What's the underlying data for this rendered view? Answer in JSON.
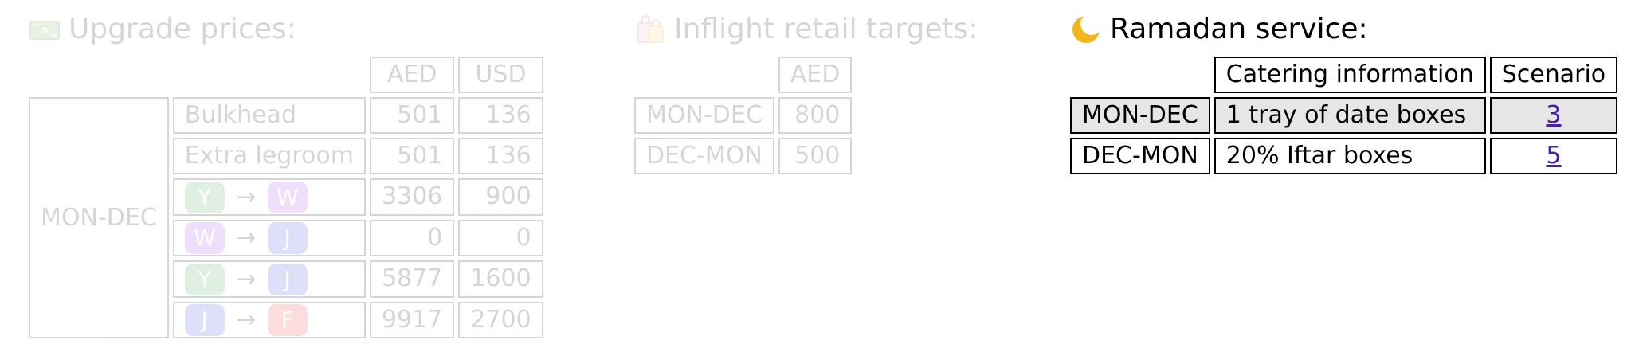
{
  "upgrade": {
    "title": "Upgrade prices:",
    "icon": "money-bill-icon",
    "columns": [
      "AED",
      "USD"
    ],
    "row_group": "MON-DEC",
    "rows": [
      {
        "label": "Bulkhead",
        "aed": "501",
        "usd": "136"
      },
      {
        "label": "Extra legroom",
        "aed": "501",
        "usd": "136"
      },
      {
        "from": "Y",
        "to": "W",
        "aed": "3306",
        "usd": "900"
      },
      {
        "from": "W",
        "to": "J",
        "aed": "0",
        "usd": "0"
      },
      {
        "from": "Y",
        "to": "J",
        "aed": "5877",
        "usd": "1600"
      },
      {
        "from": "J",
        "to": "F",
        "aed": "9917",
        "usd": "2700"
      }
    ],
    "arrow": "→",
    "class_colors": {
      "Y": "#3fa45a",
      "W": "#a53ee6",
      "J": "#3a3ee0",
      "F": "#ee2a2a"
    }
  },
  "retail": {
    "title": "Inflight retail targets:",
    "icon": "shopping-bags-icon",
    "column": "AED",
    "rows": [
      {
        "route": "MON-DEC",
        "aed": "800"
      },
      {
        "route": "DEC-MON",
        "aed": "500"
      }
    ]
  },
  "ramadan": {
    "title": "Ramadan service:",
    "icon": "crescent-moon-icon",
    "columns": [
      "Catering information",
      "Scenario"
    ],
    "rows": [
      {
        "route": "MON-DEC",
        "catering": "1 tray of date boxes",
        "scenario": "3"
      },
      {
        "route": "DEC-MON",
        "catering": "20% Iftar boxes",
        "scenario": "5"
      }
    ]
  }
}
